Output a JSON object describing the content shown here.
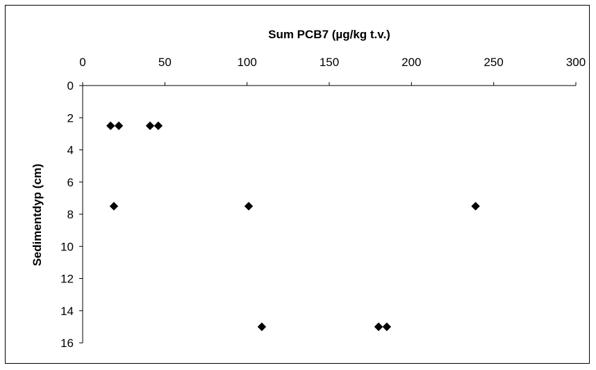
{
  "chart_data": {
    "type": "scatter",
    "title": "",
    "xlabel": "Sum PCB7 (µg/kg t.v.)",
    "ylabel": "Sedimentdyp (cm)",
    "x_axis_position": "top",
    "y_axis_inverted": true,
    "xlim": [
      0,
      300
    ],
    "ylim": [
      0,
      16
    ],
    "x_ticks": [
      0,
      50,
      100,
      150,
      200,
      250,
      300
    ],
    "y_ticks": [
      0,
      2,
      4,
      6,
      8,
      10,
      12,
      14,
      16
    ],
    "grid": false,
    "legend": "none",
    "marker": "diamond",
    "marker_color": "#000000",
    "points": [
      {
        "x": 17,
        "y": 2.5
      },
      {
        "x": 22,
        "y": 2.5
      },
      {
        "x": 41,
        "y": 2.5
      },
      {
        "x": 46,
        "y": 2.5
      },
      {
        "x": 19,
        "y": 7.5
      },
      {
        "x": 101,
        "y": 7.5
      },
      {
        "x": 239,
        "y": 7.5
      },
      {
        "x": 109,
        "y": 15
      },
      {
        "x": 180,
        "y": 15
      },
      {
        "x": 185,
        "y": 15
      }
    ]
  }
}
